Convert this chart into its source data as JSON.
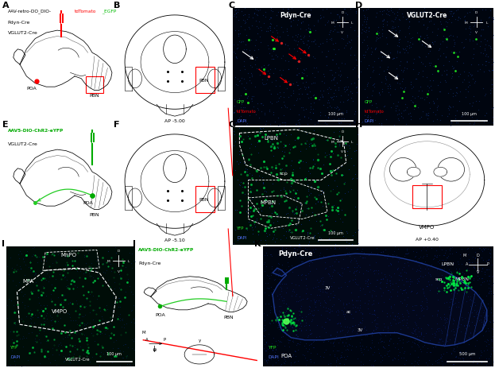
{
  "figure_width": 6.17,
  "figure_height": 4.57,
  "dpi": 100,
  "background_color": "#ffffff",
  "panel_bg_white": "#ffffff",
  "panel_bg_dark_c": "#00050f",
  "panel_bg_dark_g": "#000d08",
  "panel_bg_dark_i": "#000d08",
  "panel_bg_dark_k": "#000510",
  "green_virus": "#22cc22",
  "red_virus": "#cc2222",
  "green_yfp": "#00ee44",
  "blue_dapi": "#2244cc",
  "white": "#ffffff",
  "panels": [
    "A",
    "B",
    "C",
    "D",
    "E",
    "F",
    "G",
    "H",
    "I",
    "J",
    "K"
  ]
}
